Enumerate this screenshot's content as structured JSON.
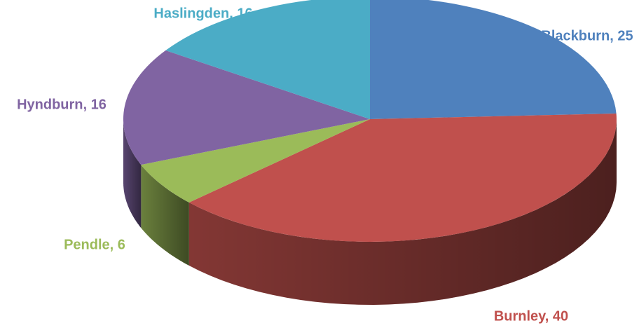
{
  "chart_data": {
    "type": "pie",
    "values": [
      25,
      40,
      6,
      16,
      16
    ],
    "value_labels": [
      "Blackburn, 25",
      "Burnley, 40",
      "Pendle, 6",
      "Hyndburn, 16",
      "Haslingden, 16"
    ],
    "colors": [
      "#4f81bd",
      "#c0504d",
      "#9bbb59",
      "#8064a2",
      "#4bacc6"
    ],
    "start_angle": 0,
    "direction": "clockwise",
    "three_d": true
  }
}
